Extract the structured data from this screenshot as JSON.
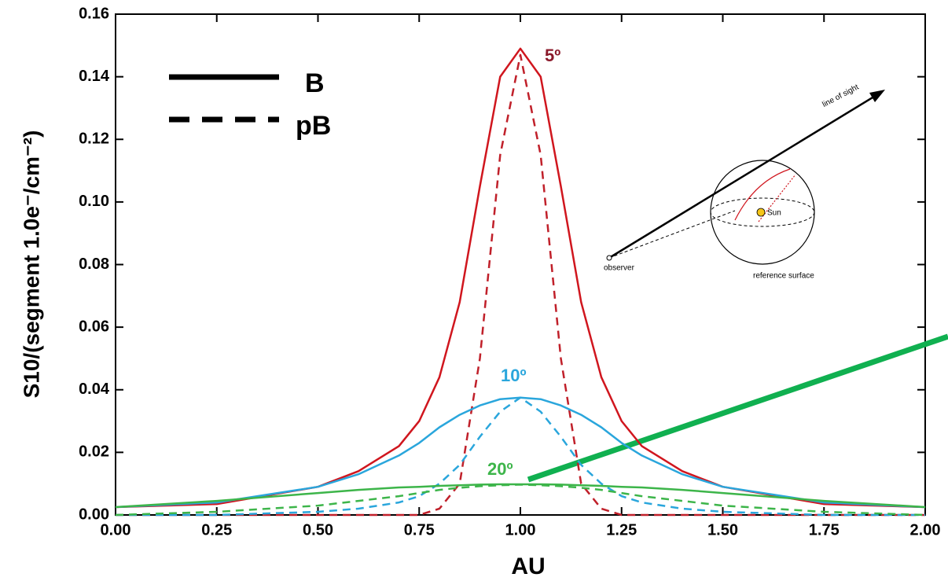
{
  "chart_data": {
    "type": "line",
    "xlabel": "AU",
    "ylabel": "S10/(segment 1.0e⁻/cm⁻²)",
    "x": [
      0,
      0.25,
      0.5,
      0.6,
      0.7,
      0.75,
      0.8,
      0.85,
      0.9,
      0.95,
      1.0,
      1.05,
      1.1,
      1.15,
      1.2,
      1.25,
      1.3,
      1.4,
      1.5,
      1.75,
      2.0
    ],
    "series": [
      {
        "color": "#d0161e",
        "dash": "solid",
        "values": [
          0.0025,
          0.0035,
          0.009,
          0.014,
          0.022,
          0.03,
          0.044,
          0.068,
          0.105,
          0.14,
          0.149,
          0.14,
          0.105,
          0.068,
          0.044,
          0.03,
          0.022,
          0.014,
          0.009,
          0.0035,
          0.0025
        ]
      },
      {
        "color": "#c0202a",
        "dash": "dashed",
        "values": [
          0,
          0,
          0,
          0,
          0,
          0,
          0.002,
          0.01,
          0.05,
          0.115,
          0.147,
          0.115,
          0.05,
          0.01,
          0.002,
          0,
          0,
          0,
          0,
          0,
          0
        ]
      },
      {
        "color": "#2aa6dc",
        "dash": "solid",
        "values": [
          0.0025,
          0.004,
          0.009,
          0.013,
          0.019,
          0.023,
          0.028,
          0.032,
          0.035,
          0.037,
          0.0375,
          0.037,
          0.035,
          0.032,
          0.028,
          0.023,
          0.019,
          0.013,
          0.009,
          0.004,
          0.0025
        ]
      },
      {
        "color": "#2aa6dc",
        "dash": "dashed",
        "values": [
          0,
          0,
          0.001,
          0.002,
          0.004,
          0.006,
          0.01,
          0.016,
          0.025,
          0.033,
          0.0375,
          0.033,
          0.025,
          0.016,
          0.01,
          0.006,
          0.004,
          0.002,
          0.001,
          0,
          0
        ]
      },
      {
        "color": "#3db54a",
        "dash": "solid",
        "values": [
          0.0025,
          0.0045,
          0.007,
          0.008,
          0.0088,
          0.009,
          0.0093,
          0.0095,
          0.0097,
          0.0098,
          0.0098,
          0.0098,
          0.0097,
          0.0095,
          0.0093,
          0.009,
          0.0088,
          0.008,
          0.007,
          0.0045,
          0.0025
        ]
      },
      {
        "color": "#3db54a",
        "dash": "dashed",
        "values": [
          0,
          0.001,
          0.003,
          0.0045,
          0.006,
          0.007,
          0.008,
          0.0087,
          0.0092,
          0.0095,
          0.0097,
          0.0095,
          0.0092,
          0.0087,
          0.008,
          0.007,
          0.006,
          0.0045,
          0.003,
          0.001,
          0
        ]
      }
    ],
    "legend": [
      {
        "label": "B",
        "dash": "solid"
      },
      {
        "label": "pB",
        "dash": "dashed"
      }
    ],
    "annotations": [
      "5º",
      "10º",
      "20º"
    ],
    "inset_labels": {
      "line_of_sight": "line of sight",
      "sun": "Sun",
      "observer": "observer",
      "reference_surface": "reference surface"
    },
    "xlim": [
      0,
      2.0
    ],
    "ylim": [
      0,
      0.16
    ],
    "xticks": [
      {
        "value": 0,
        "label": "0.00"
      },
      {
        "value": 0.25,
        "label": "0.25"
      },
      {
        "value": 0.5,
        "label": "0.50"
      },
      {
        "value": 0.75,
        "label": "0.75"
      },
      {
        "value": 1.0,
        "label": "1.00"
      },
      {
        "value": 1.25,
        "label": "1.25"
      },
      {
        "value": 1.5,
        "label": "1.50"
      },
      {
        "value": 1.75,
        "label": "1.75"
      },
      {
        "value": 2.0,
        "label": "2.00"
      }
    ],
    "yticks": [
      {
        "value": 0,
        "label": "0.00"
      },
      {
        "value": 0.02,
        "label": "0.02"
      },
      {
        "value": 0.04,
        "label": "0.04"
      },
      {
        "value": 0.06,
        "label": "0.06"
      },
      {
        "value": 0.08,
        "label": "0.08"
      },
      {
        "value": 0.1,
        "label": "0.10"
      },
      {
        "value": 0.12,
        "label": "0.12"
      },
      {
        "value": 0.14,
        "label": "0.14"
      },
      {
        "value": 0.16,
        "label": "0.16"
      }
    ],
    "grid": false
  }
}
